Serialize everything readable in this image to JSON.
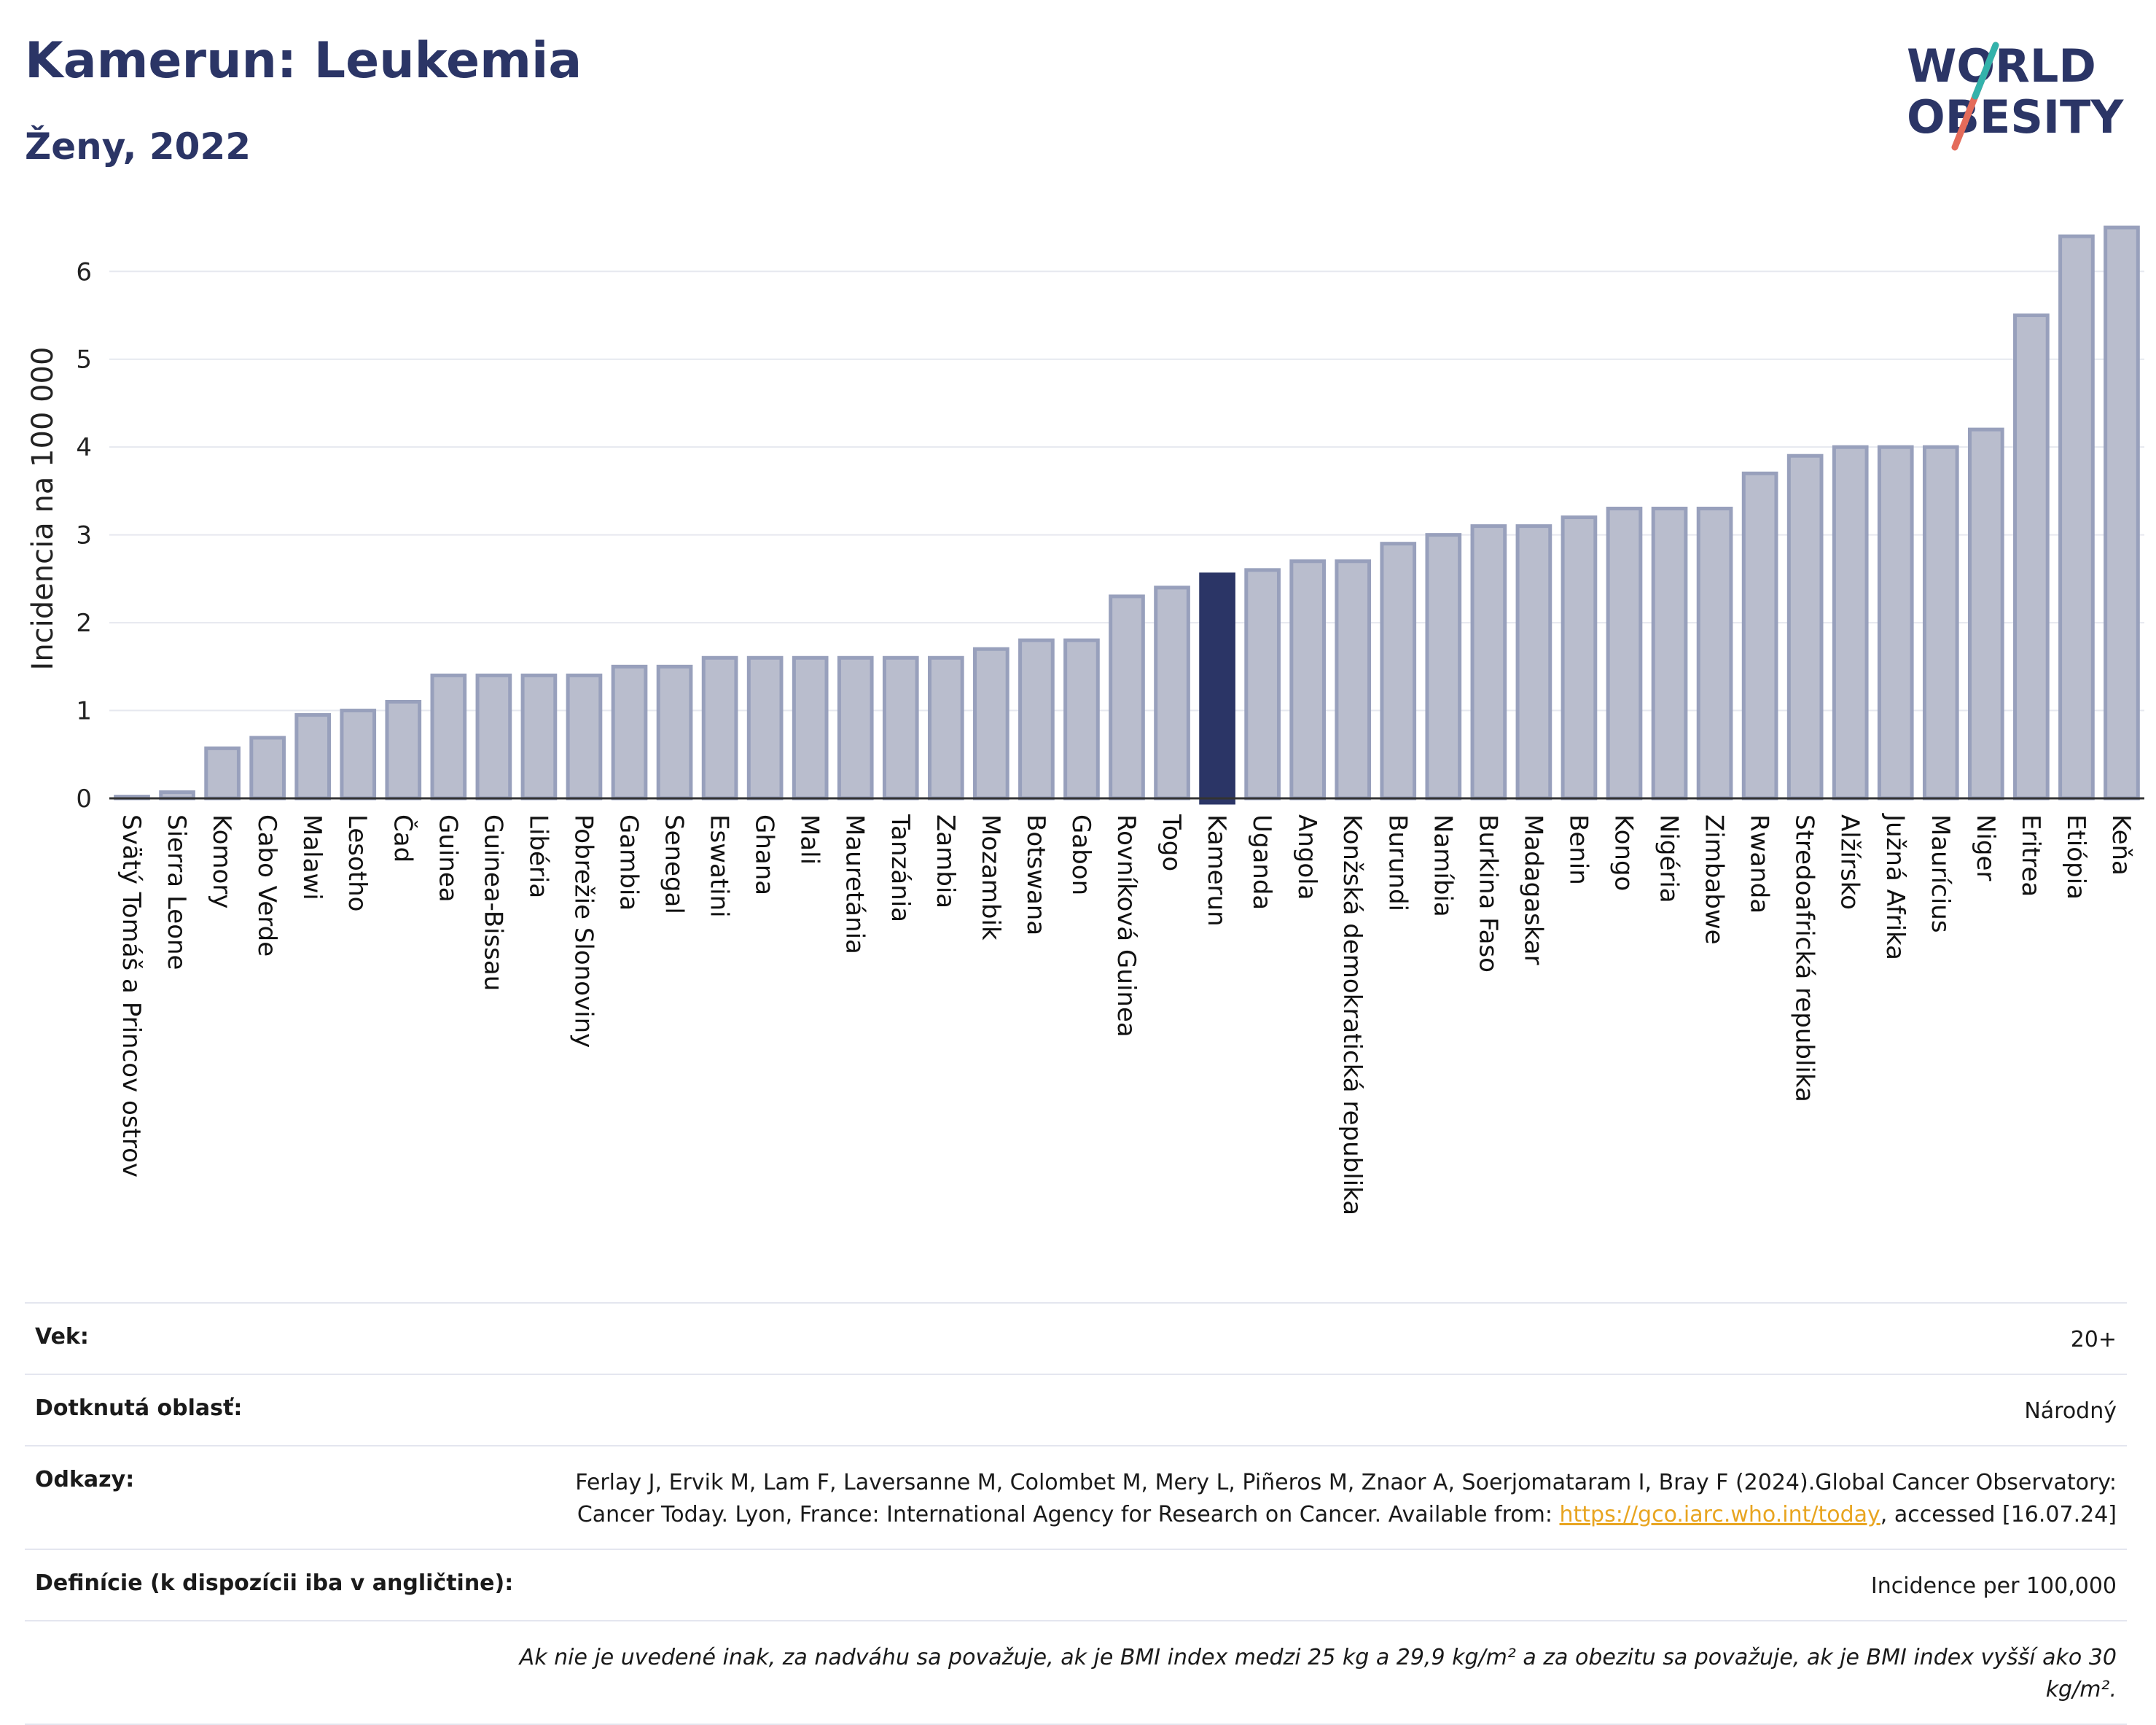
{
  "header": {
    "title": "Kamerun: Leukemia",
    "subtitle": "Ženy, 2022",
    "logo_text_1": "WORLD",
    "logo_text_2": "OBESITY"
  },
  "colors": {
    "bar": "#b9bdcd",
    "bar_stroke": "#98a0bc",
    "highlight": "#2b3566",
    "title": "#2b3566"
  },
  "chart_data": {
    "type": "bar",
    "ylabel": "Incidencia na 100 000",
    "ylim": [
      0,
      6.6
    ],
    "yticks": [
      0,
      1,
      2,
      3,
      4,
      5,
      6
    ],
    "grid": true,
    "highlight": "Kamerun",
    "categories": [
      "Svätý Tomáš a Princov ostrov",
      "Sierra Leone",
      "Komory",
      "Cabo Verde",
      "Malawi",
      "Lesotho",
      "Čad",
      "Guinea",
      "Guinea-Bissau",
      "Libéria",
      "Pobrežie Slonoviny",
      "Gambia",
      "Senegal",
      "Eswatini",
      "Ghana",
      "Mali",
      "Mauretánia",
      "Tanzánia",
      "Zambia",
      "Mozambik",
      "Botswana",
      "Gabon",
      "Rovníková Guinea",
      "Togo",
      "Kamerun",
      "Uganda",
      "Angola",
      "Konžská demokratická republika",
      "Burundi",
      "Namíbia",
      "Burkina Faso",
      "Madagaskar",
      "Benin",
      "Kongo",
      "Nigéria",
      "Zimbabwe",
      "Rwanda",
      "Stredoafrická republika",
      "Alžírsko",
      "Južná Afrika",
      "Maurícius",
      "Niger",
      "Eritrea",
      "Etiópia",
      "Keňa"
    ],
    "values": [
      0.02,
      0.07,
      0.57,
      0.69,
      0.95,
      1.0,
      1.1,
      1.4,
      1.4,
      1.4,
      1.4,
      1.5,
      1.5,
      1.6,
      1.6,
      1.6,
      1.6,
      1.6,
      1.6,
      1.7,
      1.8,
      1.8,
      2.3,
      2.4,
      2.55,
      2.6,
      2.7,
      2.7,
      2.9,
      3.0,
      3.1,
      3.1,
      3.2,
      3.3,
      3.3,
      3.3,
      3.7,
      3.9,
      4.0,
      4.0,
      4.0,
      4.2,
      5.5,
      6.4,
      6.5
    ]
  },
  "info": {
    "age_label": "Vek:",
    "age_value": "20+",
    "area_label": "Dotknutá oblasť:",
    "area_value": "Národný",
    "refs_label": "Odkazy:",
    "refs_text": "Ferlay J, Ervik M, Lam F, Laversanne M, Colombet M, Mery L, Piñeros M, Znaor A, Soerjomataram I, Bray F (2024).Global Cancer Observatory: Cancer Today. Lyon, France: International Agency for Research on Cancer. Available from: ",
    "refs_link": "https://gco.iarc.who.int/today",
    "refs_tail": ", accessed [16.07.24]",
    "def_label": "Definície (k dispozícii iba v angličtine):",
    "def_value": "Incidence per 100,000",
    "note": "Ak nie je uvedené inak, za nadváhu sa považuje, ak je BMI index medzi 25 kg a 29,9 kg/m² a za obezitu sa považuje, ak je BMI index vyšší ako 30 kg/m²."
  }
}
